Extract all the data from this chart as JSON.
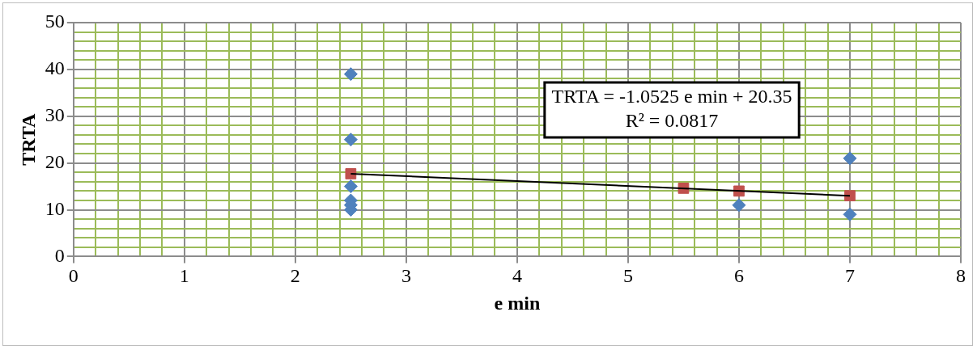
{
  "chart_data": {
    "type": "scatter",
    "xlabel": "e min",
    "ylabel": "TRTA",
    "series": [
      {
        "type": "scatter",
        "color": "#4f81bd",
        "marker": "diamond",
        "x": [
          2.5,
          2.5,
          2.5,
          2.5,
          2.5,
          2.5,
          6,
          7,
          7
        ],
        "values": [
          39,
          25,
          15,
          12,
          11,
          10,
          11,
          21,
          9
        ]
      },
      {
        "type": "scatter",
        "color": "#c0504d",
        "marker": "square",
        "x": [
          2.5,
          5.5,
          6,
          7
        ],
        "values": [
          17.7,
          14.6,
          14,
          13
        ]
      },
      {
        "type": "line",
        "color": "#000000",
        "marker": "none",
        "x": [
          2.5,
          7
        ],
        "values": [
          17.7,
          13
        ]
      }
    ],
    "xlim": [
      0,
      8
    ],
    "xticks": [
      0,
      {
        "value": 0.2,
        "label": null
      },
      {
        "value": 0.4,
        "label": null
      },
      {
        "value": 0.6,
        "label": null
      },
      {
        "value": 0.8,
        "label": null
      },
      1,
      {
        "value": 1.2,
        "label": null
      },
      {
        "value": 1.4,
        "label": null
      },
      {
        "value": 1.6,
        "label": null
      },
      {
        "value": 1.8,
        "label": null
      },
      2,
      {
        "value": 2.2,
        "label": null
      },
      {
        "value": 2.4,
        "label": null
      },
      {
        "value": 2.6,
        "label": null
      },
      {
        "value": 2.8,
        "label": null
      },
      3,
      {
        "value": 3.2,
        "label": null
      },
      {
        "value": 3.4,
        "label": null
      },
      {
        "value": 3.6,
        "label": null
      },
      {
        "value": 3.8,
        "label": null
      },
      4,
      {
        "value": 4.2,
        "label": null
      },
      {
        "value": 4.4,
        "label": null
      },
      {
        "value": 4.6,
        "label": null
      },
      {
        "value": 4.8,
        "label": null
      },
      5,
      {
        "value": 5.2,
        "label": null
      },
      {
        "value": 5.4,
        "label": null
      },
      {
        "value": 5.6,
        "label": null
      },
      {
        "value": 5.8,
        "label": null
      },
      6,
      {
        "value": 6.2,
        "label": null
      },
      {
        "value": 6.4,
        "label": null
      },
      {
        "value": 6.6,
        "label": null
      },
      {
        "value": 6.8,
        "label": null
      },
      7,
      {
        "value": 7.2,
        "label": null
      },
      {
        "value": 7.4,
        "label": null
      },
      {
        "value": 7.6,
        "label": null
      },
      {
        "value": 7.8,
        "label": null
      },
      8
    ],
    "ylim": [
      0,
      50
    ],
    "yticks": [
      0,
      {
        "value": 2,
        "label": null
      },
      {
        "value": 4,
        "label": null
      },
      {
        "value": 6,
        "label": null
      },
      {
        "value": 8,
        "label": null
      },
      10,
      {
        "value": 12,
        "label": null
      },
      {
        "value": 14,
        "label": null
      },
      {
        "value": 16,
        "label": null
      },
      {
        "value": 18,
        "label": null
      },
      20,
      {
        "value": 22,
        "label": null
      },
      {
        "value": 24,
        "label": null
      },
      {
        "value": 26,
        "label": null
      },
      {
        "value": 28,
        "label": null
      },
      30,
      {
        "value": 32,
        "label": null
      },
      {
        "value": 34,
        "label": null
      },
      {
        "value": 36,
        "label": null
      },
      {
        "value": 38,
        "label": null
      },
      40,
      {
        "value": 42,
        "label": null
      },
      {
        "value": 44,
        "label": null
      },
      {
        "value": 46,
        "label": null
      },
      {
        "value": 48,
        "label": null
      },
      50
    ],
    "grid": true,
    "legend": false,
    "annotations": [
      "TRTA = -1.0525 e min + 20.35\nR² = 0.0817"
    ]
  }
}
